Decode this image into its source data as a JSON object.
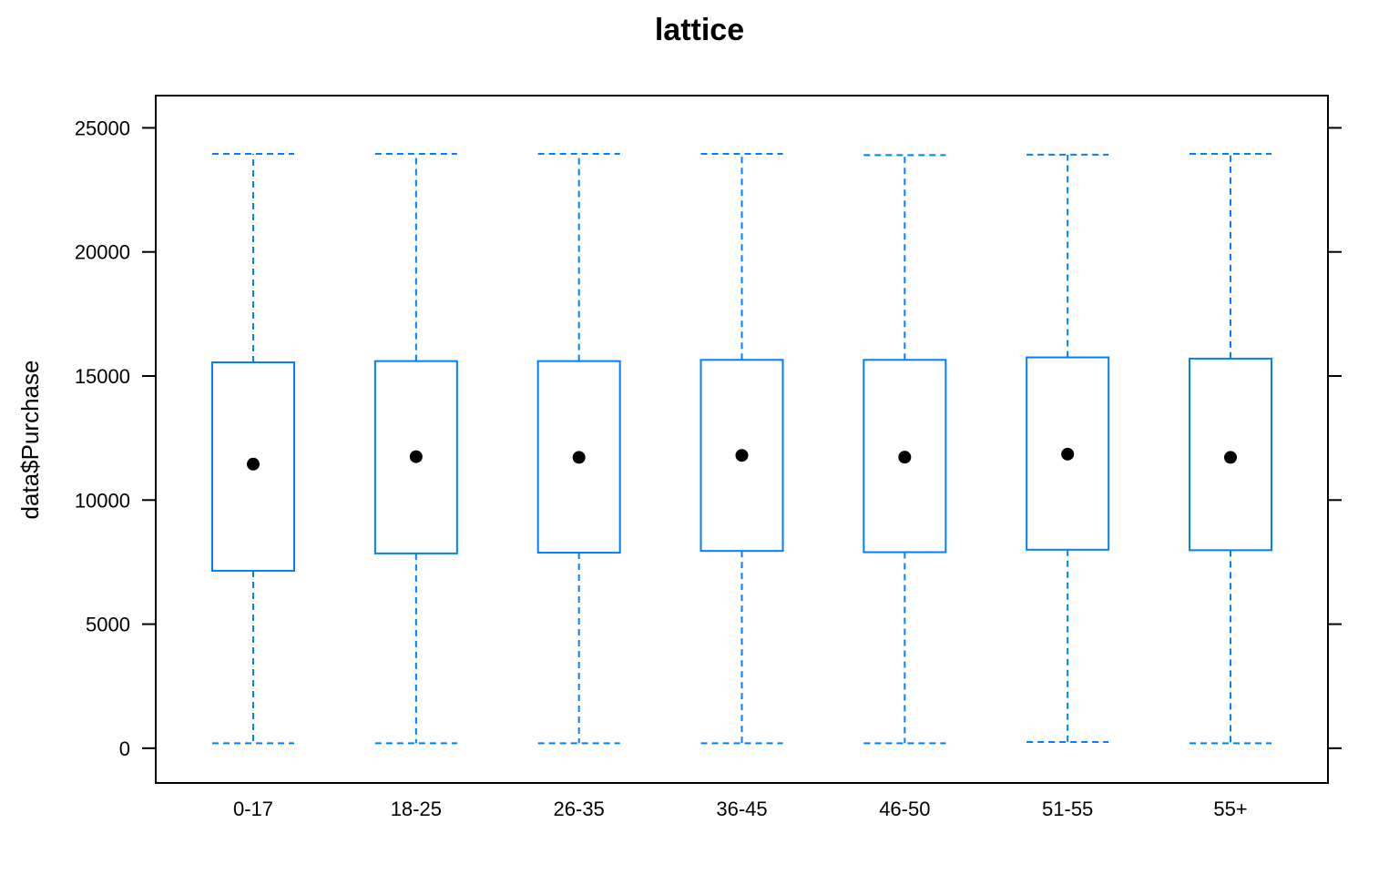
{
  "chart_data": {
    "type": "box",
    "title": "lattice",
    "xlabel": "",
    "ylabel": "data$Purchase",
    "ylim": [
      -1400,
      26300
    ],
    "yticks": [
      0,
      5000,
      10000,
      15000,
      20000,
      25000
    ],
    "categories": [
      "0-17",
      "18-25",
      "26-35",
      "36-45",
      "46-50",
      "51-55",
      "55+"
    ],
    "boxes": [
      {
        "category": "0-17",
        "min": 200,
        "q1": 7150,
        "median": 11450,
        "q3": 15550,
        "max": 23950
      },
      {
        "category": "18-25",
        "min": 200,
        "q1": 7850,
        "median": 11750,
        "q3": 15600,
        "max": 23950
      },
      {
        "category": "26-35",
        "min": 200,
        "q1": 7880,
        "median": 11720,
        "q3": 15600,
        "max": 23950
      },
      {
        "category": "36-45",
        "min": 200,
        "q1": 7950,
        "median": 11800,
        "q3": 15650,
        "max": 23950
      },
      {
        "category": "46-50",
        "min": 200,
        "q1": 7900,
        "median": 11730,
        "q3": 15650,
        "max": 23900
      },
      {
        "category": "51-55",
        "min": 250,
        "q1": 8000,
        "median": 11850,
        "q3": 15750,
        "max": 23920
      },
      {
        "category": "55+",
        "min": 200,
        "q1": 7980,
        "median": 11720,
        "q3": 15700,
        "max": 23950
      }
    ],
    "box_color": "#0080ff",
    "median_marker_color": "#000000",
    "grid": false
  }
}
